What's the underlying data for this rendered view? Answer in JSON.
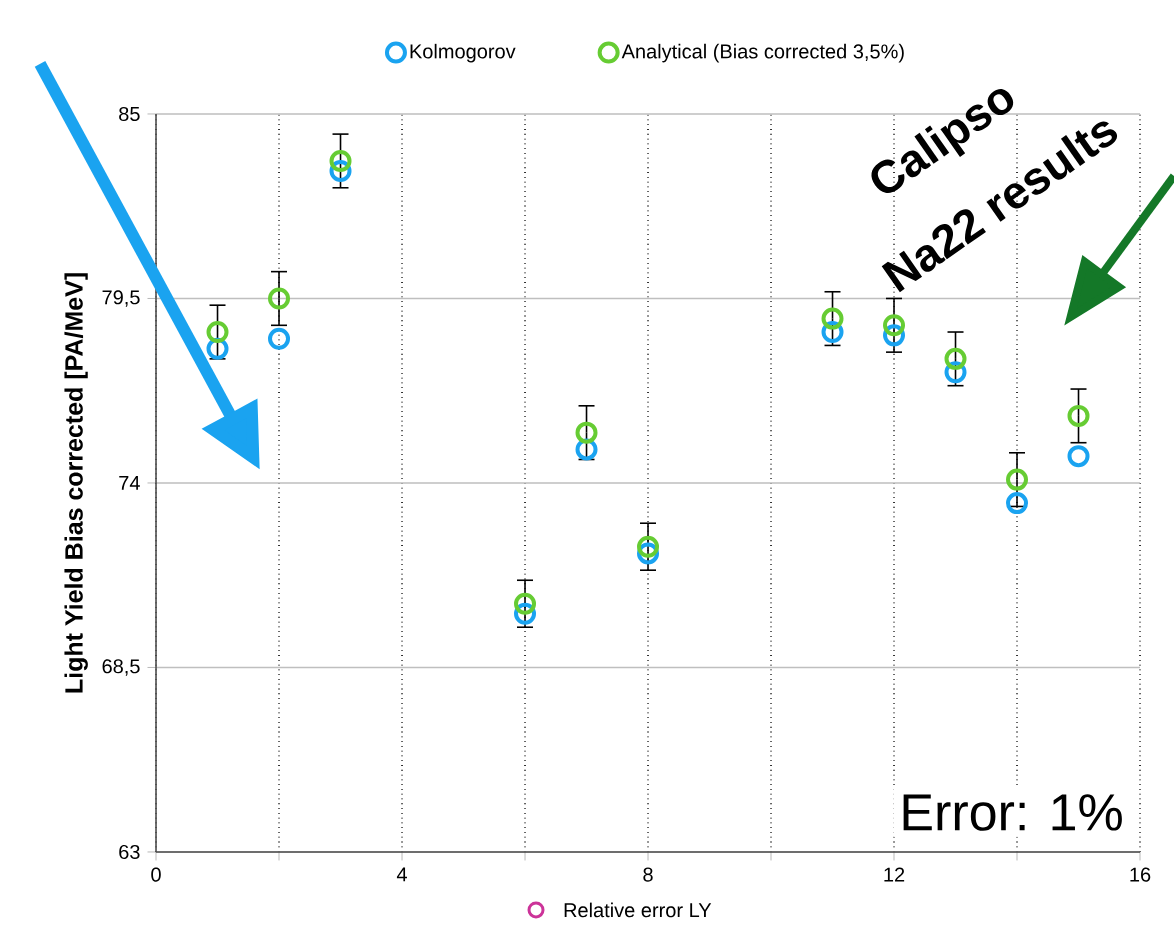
{
  "chart_data": {
    "type": "scatter",
    "ylabel": "Light Yield Bias corrected [PA/MeV]",
    "x": [
      1,
      2,
      3,
      6,
      7,
      8,
      11,
      12,
      13,
      14,
      15
    ],
    "series": [
      {
        "name": "Kolmogorov",
        "color": "#1aa3f0",
        "values": [
          78.0,
          78.3,
          83.3,
          70.1,
          75.0,
          71.9,
          78.5,
          78.4,
          77.3,
          73.4,
          74.8
        ]
      },
      {
        "name": "Analytical (Bias corrected 3,5%)",
        "color": "#66cc33",
        "values": [
          78.5,
          79.5,
          83.6,
          70.4,
          75.5,
          72.1,
          78.9,
          78.7,
          77.7,
          74.1,
          76.0
        ],
        "errors": [
          0.8,
          0.8,
          0.8,
          0.7,
          0.8,
          0.7,
          0.8,
          0.8,
          0.8,
          0.8,
          0.8
        ]
      }
    ],
    "xlim": [
      0,
      16
    ],
    "ylim": [
      63,
      85
    ],
    "xticks": [
      0,
      {
        "value": 2,
        "label": null
      },
      4,
      {
        "value": 6,
        "label": null
      },
      8,
      {
        "value": 10,
        "label": null
      },
      12,
      {
        "value": 14,
        "label": null
      },
      16
    ],
    "yticks": [
      63,
      {
        "value": 68.5,
        "label": "68,5"
      },
      74,
      {
        "value": 79.5,
        "label": "79,5"
      },
      85
    ],
    "grid": true,
    "legend": "top",
    "marker": "circle",
    "annotations": [
      "Calipso",
      "Na22 results",
      "Error: 1%",
      "Relative error LY"
    ]
  }
}
